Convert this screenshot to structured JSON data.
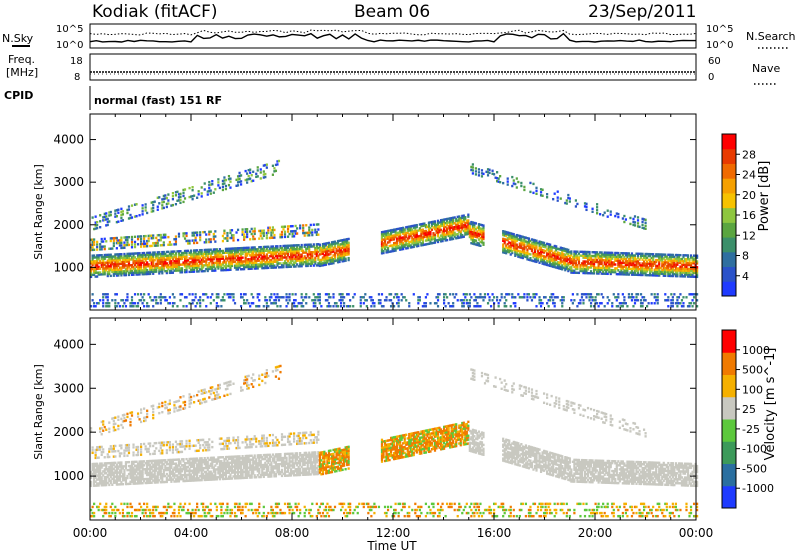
{
  "header": {
    "station": "Kodiak (fitACF)",
    "beam": "Beam 06",
    "date": "23/Sep/2011"
  },
  "top_panels": {
    "nsky_label": "N.Sky",
    "nsearch_label": "N.Search",
    "nsky_tick_hi": "10^5",
    "nsky_tick_lo": "10^0",
    "nsearch_tick_hi": "10^5",
    "nsearch_tick_lo": "10^0",
    "freq_label": "Freq.",
    "freq_unit": "[MHz]",
    "freq_tick_hi": "18",
    "freq_tick_lo": "8",
    "nave_label": "Nave",
    "nave_tick_hi": "60",
    "nave_tick_lo": "0",
    "cpid_label": "CPID",
    "cpid_value": "normal (fast) 151 RF"
  },
  "chart_data": [
    {
      "type": "heatmap",
      "title": "",
      "xlabel": "",
      "ylabel": "Slant Range [km]",
      "x_ticks": [
        "00:00",
        "04:00",
        "08:00",
        "12:00",
        "16:00",
        "20:00",
        "00:00"
      ],
      "y_ticks": [
        1000,
        2000,
        3000,
        4000
      ],
      "ylim": [
        0,
        4600
      ],
      "xlim_hours": [
        0,
        24
      ],
      "colorbar_label": "Power [dB]",
      "colorbar_ticks": [
        4,
        8,
        12,
        16,
        20,
        24,
        28
      ],
      "colorbar_colors": [
        "#1f3bff",
        "#2a52c9",
        "#2f6fa0",
        "#3b8f6a",
        "#5aa540",
        "#8ec63f",
        "#f6c200",
        "#f5a000",
        "#f06a00",
        "#e83a00",
        "#ff0000"
      ],
      "bands": [
        {
          "name": "lower_F",
          "t_start": 0.0,
          "t_end": 24.0,
          "range_start_km": 800,
          "range_end_km": 1350
        },
        {
          "name": "middle",
          "t_start": 0.0,
          "t_end": 9.0,
          "range_start_km": 1350,
          "range_end_km": 2000
        },
        {
          "name": "upper",
          "t_start": 0.0,
          "t_end": 7.5,
          "range_start_km": 1800,
          "range_end_km": 3500
        },
        {
          "name": "afternoon",
          "t_start": 15.0,
          "t_end": 22.0,
          "range_start_km": 1000,
          "range_end_km": 3500
        }
      ]
    },
    {
      "type": "heatmap",
      "title": "",
      "xlabel": "Time UT",
      "ylabel": "Slant Range [km]",
      "x_ticks": [
        "00:00",
        "04:00",
        "08:00",
        "12:00",
        "16:00",
        "20:00",
        "00:00"
      ],
      "y_ticks": [
        1000,
        2000,
        3000,
        4000
      ],
      "ylim": [
        0,
        4600
      ],
      "xlim_hours": [
        0,
        24
      ],
      "colorbar_label": "Velocity [m s^-1]",
      "colorbar_ticks": [
        1000,
        500,
        100,
        25,
        -25,
        -100,
        -500,
        -1000
      ],
      "colorbar_colors": [
        "#1f3bff",
        "#2a6fa0",
        "#3c9a5a",
        "#5cc83c",
        "#c8c8c0",
        "#f5b000",
        "#f07a00",
        "#ff0000"
      ]
    }
  ],
  "colors": {
    "ground_scatter": "#c4c4bc",
    "frame": "#000000"
  }
}
